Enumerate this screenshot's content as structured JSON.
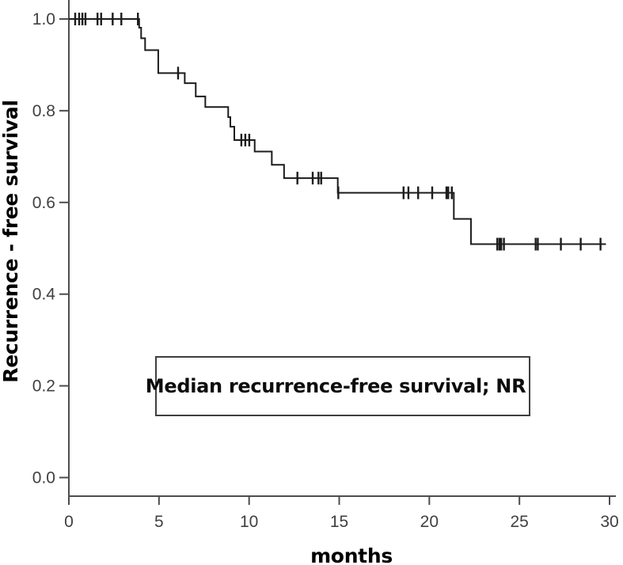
{
  "chart_data": {
    "type": "line",
    "subtype": "kaplan-meier-step",
    "title": "",
    "xlabel": "months",
    "ylabel": "Recurrence - free survival",
    "xlim": [
      0,
      30
    ],
    "ylim": [
      0.0,
      1.0
    ],
    "xticks": [
      "0",
      "5",
      "10",
      "15",
      "20",
      "25",
      "30"
    ],
    "yticks": [
      "0.0",
      "0.2",
      "0.4",
      "0.6",
      "0.8",
      "1.0"
    ],
    "grid": false,
    "legend": "none",
    "annotation_box": {
      "text": "Median recurrence-free survival; NR"
    },
    "series": [
      {
        "name": "Recurrence-free survival",
        "steps": [
          [
            0,
            1.0
          ],
          [
            3.9,
            0.981
          ],
          [
            4.01,
            0.958
          ],
          [
            4.23,
            0.932
          ],
          [
            4.96,
            0.882
          ],
          [
            6.43,
            0.86
          ],
          [
            7.04,
            0.831
          ],
          [
            7.57,
            0.808
          ],
          [
            8.84,
            0.786
          ],
          [
            8.96,
            0.765
          ],
          [
            9.18,
            0.736
          ],
          [
            10.31,
            0.711
          ],
          [
            11.26,
            0.682
          ],
          [
            11.94,
            0.653
          ],
          [
            14.92,
            0.621
          ],
          [
            21.36,
            0.564
          ],
          [
            22.31,
            0.509
          ]
        ],
        "end_x": 29.8,
        "censor_marks": [
          [
            0.35,
            1.0
          ],
          [
            0.57,
            1.0
          ],
          [
            0.75,
            1.0
          ],
          [
            0.92,
            1.0
          ],
          [
            1.59,
            1.0
          ],
          [
            1.79,
            1.0
          ],
          [
            2.43,
            1.0
          ],
          [
            2.91,
            1.0
          ],
          [
            3.83,
            1.0
          ],
          [
            6.06,
            0.882
          ],
          [
            9.57,
            0.736
          ],
          [
            9.79,
            0.736
          ],
          [
            10.01,
            0.736
          ],
          [
            12.68,
            0.653
          ],
          [
            13.53,
            0.653
          ],
          [
            13.85,
            0.653
          ],
          [
            14.0,
            0.653
          ],
          [
            14.95,
            0.621
          ],
          [
            18.57,
            0.621
          ],
          [
            18.84,
            0.621
          ],
          [
            19.38,
            0.621
          ],
          [
            20.16,
            0.621
          ],
          [
            20.95,
            0.621
          ],
          [
            21.05,
            0.621
          ],
          [
            21.25,
            0.621
          ],
          [
            23.77,
            0.509
          ],
          [
            23.89,
            0.509
          ],
          [
            23.99,
            0.509
          ],
          [
            24.14,
            0.509
          ],
          [
            25.9,
            0.509
          ],
          [
            26.02,
            0.509
          ],
          [
            27.3,
            0.509
          ],
          [
            28.4,
            0.509
          ],
          [
            29.5,
            0.509
          ]
        ]
      }
    ],
    "colors": {
      "curve": "#1c1c1c",
      "axis": "#4d4d4f",
      "tick_label": "#414042",
      "label_text": "#000000",
      "box_border": "#3f3f41",
      "background": "#ffffff"
    }
  }
}
